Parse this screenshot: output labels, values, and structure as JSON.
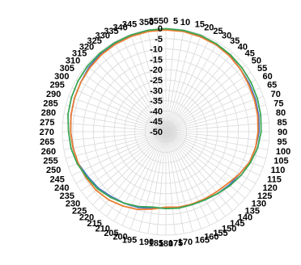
{
  "chart_data": {
    "type": "polar_line",
    "angular_axis": {
      "unit": "degrees",
      "direction": "clockwise",
      "zero_position": "top",
      "step": 5,
      "tick_labels": [
        "0",
        "5",
        "10",
        "15",
        "20",
        "25",
        "30",
        "35",
        "40",
        "45",
        "50",
        "55",
        "60",
        "65",
        "70",
        "75",
        "80",
        "85",
        "90",
        "95",
        "100",
        "105",
        "110",
        "115",
        "120",
        "125",
        "130",
        "135",
        "140",
        "145",
        "150",
        "155",
        "160",
        "165",
        "170",
        "175",
        "180",
        "185",
        "190",
        "195",
        "200",
        "205",
        "210",
        "215",
        "220",
        "225",
        "230",
        "235",
        "240",
        "245",
        "250",
        "255",
        "260",
        "265",
        "270",
        "275",
        "280",
        "285",
        "290",
        "295",
        "300",
        "305",
        "310",
        "315",
        "320",
        "325",
        "330",
        "335",
        "340",
        "345",
        "350",
        "355"
      ]
    },
    "radial_axis": {
      "range": [
        -50,
        0
      ],
      "step": 5,
      "tick_labels": [
        "0",
        "-5",
        "-10",
        "-15",
        "-20",
        "-25",
        "-30",
        "-35",
        "-40",
        "-45",
        "-50"
      ]
    },
    "grid": true,
    "legend": "none",
    "angles": [
      0,
      10,
      20,
      30,
      40,
      50,
      60,
      70,
      80,
      90,
      100,
      110,
      120,
      130,
      140,
      150,
      160,
      170,
      180,
      190,
      200,
      210,
      220,
      230,
      240,
      250,
      260,
      270,
      280,
      290,
      300,
      310,
      320,
      330,
      340,
      350
    ],
    "series": [
      {
        "color": "#4472C4",
        "values": [
          -0.5,
          -0.6,
          -1,
          -1.5,
          -2,
          -3,
          -3.5,
          -4,
          -4.5,
          -5,
          -6,
          -7,
          -9,
          -10,
          -11,
          -12,
          -12.5,
          -13,
          -13,
          -12.5,
          -11,
          -10,
          -9,
          -7.5,
          -6.5,
          -5,
          -4.5,
          -4,
          -3.5,
          -3,
          -2.5,
          -1.5,
          -1,
          -0.8,
          -0.6,
          -0.5
        ]
      },
      {
        "color": "#ED7D31",
        "values": [
          -0.8,
          -0.8,
          -1.2,
          -1.5,
          -2.2,
          -3,
          -4,
          -4.5,
          -5,
          -5.5,
          -6,
          -7,
          -9,
          -11,
          -12,
          -12.5,
          -12.8,
          -13,
          -13.5,
          -12,
          -10,
          -8.5,
          -7,
          -6,
          -5.5,
          -5,
          -4.5,
          -4,
          -3.5,
          -3,
          -2.5,
          -2,
          -1.5,
          -1.2,
          -1,
          -0.8
        ]
      },
      {
        "color": "#3AA655",
        "values": [
          -0.2,
          -0.3,
          -0.5,
          -1,
          -1.5,
          -2,
          -2.5,
          -3,
          -3.5,
          -4,
          -5,
          -6.5,
          -8,
          -9.5,
          -11,
          -12,
          -12.5,
          -12.5,
          -12.8,
          -13,
          -11.5,
          -10,
          -8.5,
          -7,
          -6,
          -4.5,
          -3.5,
          -3,
          -2,
          -1.5,
          -1,
          -0.6,
          -0.5,
          -0.4,
          -0.3,
          -0.2
        ]
      }
    ]
  }
}
